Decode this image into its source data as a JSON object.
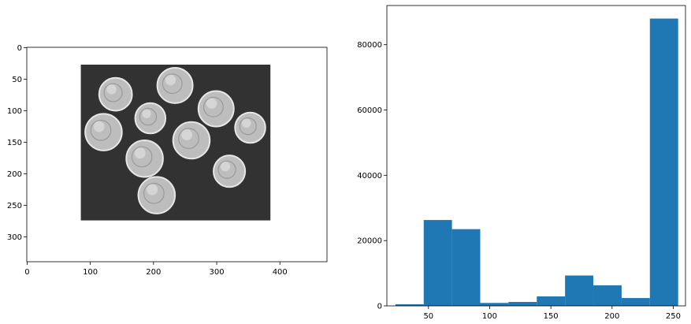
{
  "colors": {
    "bar": "#1f77b4",
    "image_background": "#323232",
    "coin_fill": "#bdbdbd",
    "coin_edge": "#e6e6e6"
  },
  "chart_data": [
    {
      "type": "image",
      "title": "",
      "xlabel": "",
      "ylabel": "",
      "xlim": [
        -0.5,
        474.5
      ],
      "ylim": [
        339.5,
        -0.5
      ],
      "x_ticks": [
        0,
        100,
        200,
        300,
        400
      ],
      "y_ticks": [
        0,
        50,
        100,
        150,
        200,
        250,
        300
      ],
      "image_extent": {
        "x": [
          85,
          385
        ],
        "y": [
          27,
          274
        ]
      },
      "coins": [
        {
          "cx": 140,
          "cy": 74,
          "r": 26,
          "kind": "nickel"
        },
        {
          "cx": 234,
          "cy": 60,
          "r": 28,
          "kind": "nickel"
        },
        {
          "cx": 195,
          "cy": 112,
          "r": 24,
          "kind": "dime"
        },
        {
          "cx": 299,
          "cy": 97,
          "r": 28,
          "kind": "nickel"
        },
        {
          "cx": 121,
          "cy": 134,
          "r": 29,
          "kind": "nickel"
        },
        {
          "cx": 353,
          "cy": 127,
          "r": 24,
          "kind": "dime"
        },
        {
          "cx": 260,
          "cy": 147,
          "r": 29,
          "kind": "nickel"
        },
        {
          "cx": 186,
          "cy": 176,
          "r": 29,
          "kind": "nickel"
        },
        {
          "cx": 320,
          "cy": 196,
          "r": 25,
          "kind": "dime"
        },
        {
          "cx": 205,
          "cy": 234,
          "r": 29,
          "kind": "nickel"
        }
      ]
    },
    {
      "type": "bar",
      "title": "",
      "xlabel": "",
      "ylabel": "",
      "xlim": [
        16,
        260
      ],
      "ylim": [
        0,
        92000
      ],
      "x_ticks": [
        50,
        100,
        150,
        200,
        250
      ],
      "y_ticks": [
        0,
        20000,
        40000,
        60000,
        80000
      ],
      "bin_edges": [
        23,
        46.1,
        69.2,
        92.3,
        115.4,
        138.5,
        161.6,
        184.7,
        207.8,
        230.9,
        254
      ],
      "values": [
        500,
        26300,
        23500,
        900,
        1200,
        2900,
        9300,
        6300,
        2400,
        88000
      ]
    }
  ]
}
